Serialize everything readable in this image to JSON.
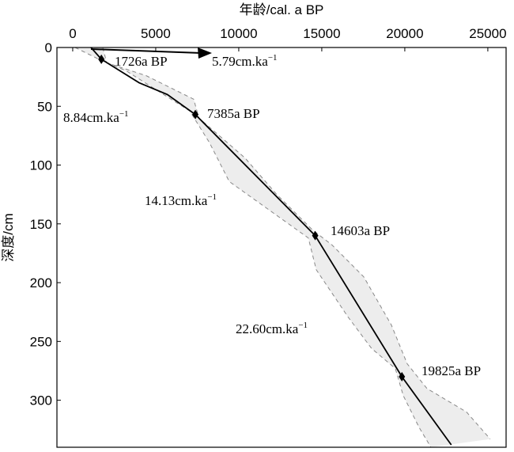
{
  "chart_data": {
    "type": "line",
    "xlabel": "年龄/cal. a BP",
    "ylabel": "深度/cm",
    "xlim": [
      -950,
      26100
    ],
    "xticks": [
      0,
      5000,
      10000,
      15000,
      20000,
      25000
    ],
    "ylim": [
      0,
      340
    ],
    "yticks": [
      0,
      50,
      100,
      150,
      200,
      250,
      300
    ],
    "y_inverted": true,
    "line": {
      "x": [
        1100,
        1726,
        4000,
        5700,
        7385,
        14603,
        19825,
        22800
      ],
      "y": [
        0,
        10,
        30,
        40,
        57,
        160,
        280,
        338
      ],
      "color": "#000000"
    },
    "lower_bound": {
      "x": [
        143,
        1571,
        3238,
        7048,
        8238,
        9429,
        11810,
        14190,
        14667,
        16571,
        18000,
        19429,
        19905,
        20857,
        21571
      ],
      "y": [
        0,
        10,
        20,
        54,
        81,
        114,
        138,
        162,
        189,
        229,
        256,
        273,
        296,
        323,
        340
      ]
    },
    "upper_bound": {
      "x": [
        1810,
        2048,
        4429,
        7286,
        7600,
        10381,
        12286,
        14429,
        15619,
        17524,
        19190,
        20143,
        21333,
        23714,
        25143
      ],
      "y": [
        0,
        13,
        24,
        44,
        60,
        94,
        125,
        155,
        168,
        195,
        236,
        269,
        290,
        310,
        333
      ]
    },
    "dates": [
      {
        "age": 1726,
        "depth": 10,
        "label": "1726a BP"
      },
      {
        "age": 7385,
        "depth": 57,
        "label": "7385a BP"
      },
      {
        "age": 14603,
        "depth": 160,
        "label": "14603a BP"
      },
      {
        "age": 19825,
        "depth": 280,
        "label": "19825a BP"
      }
    ],
    "rates": [
      {
        "text": "5.79cm.ka",
        "sup": "−1"
      },
      {
        "text": "8.84cm.ka",
        "sup": "−1"
      },
      {
        "text": "14.13cm.ka",
        "sup": "−1"
      },
      {
        "text": "22.60cm.ka",
        "sup": "−1"
      }
    ]
  }
}
